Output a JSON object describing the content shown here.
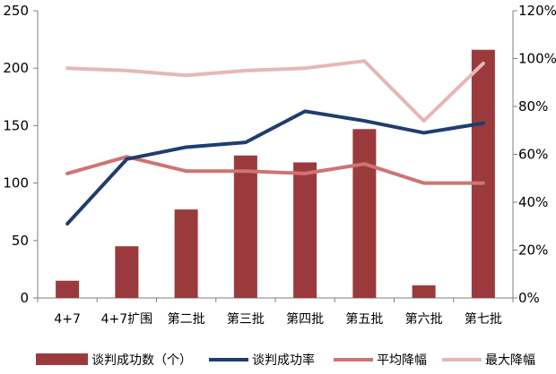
{
  "chart_data": {
    "type": "bar",
    "categories": [
      "4+7",
      "4+7扩围",
      "第二批",
      "第三批",
      "第四批",
      "第五批",
      "第六批",
      "第七批"
    ],
    "series": [
      {
        "name": "谈判成功数（个）",
        "kind": "bar",
        "axis": "left",
        "color": "#9b3a3c",
        "values": [
          15,
          45,
          77,
          124,
          118,
          147,
          11,
          216
        ]
      },
      {
        "name": "谈判成功率",
        "kind": "line",
        "axis": "right",
        "color": "#1f3d6e",
        "values": [
          0.31,
          0.58,
          0.63,
          0.65,
          0.78,
          0.74,
          0.69,
          0.73
        ]
      },
      {
        "name": "平均降幅",
        "kind": "line",
        "axis": "right",
        "color": "#cf7373",
        "values": [
          0.52,
          0.59,
          0.53,
          0.53,
          0.52,
          0.56,
          0.48,
          0.48
        ]
      },
      {
        "name": "最大降幅",
        "kind": "line",
        "axis": "right",
        "color": "#e8b6b6",
        "values": [
          0.96,
          0.95,
          0.93,
          0.95,
          0.96,
          0.99,
          0.74,
          0.98
        ]
      }
    ],
    "ylim_left": [
      0,
      250
    ],
    "ylim_right": [
      0,
      1.2
    ],
    "yticks_left": [
      "0",
      "50",
      "100",
      "150",
      "200",
      "250"
    ],
    "yticks_right": [
      "0%",
      "20%",
      "40%",
      "60%",
      "80%",
      "100%",
      "120%"
    ],
    "legend_position": "bottom",
    "grid": false
  }
}
